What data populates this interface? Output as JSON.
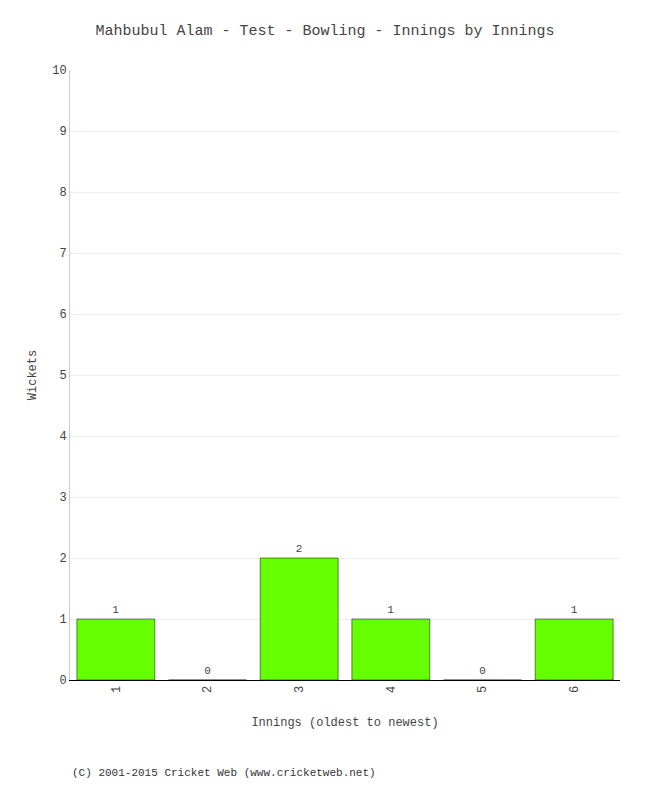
{
  "chart_data": {
    "type": "bar",
    "title": "Mahbubul Alam - Test - Bowling - Innings by Innings",
    "xlabel": "Innings (oldest to newest)",
    "ylabel": "Wickets",
    "categories": [
      1,
      2,
      3,
      4,
      5,
      6
    ],
    "values": [
      1,
      0,
      2,
      1,
      0,
      1
    ],
    "color": "#66ff00",
    "ylim": [
      0,
      10
    ],
    "yticks": [
      0,
      1,
      2,
      3,
      4,
      5,
      6,
      7,
      8,
      9,
      10
    ],
    "grid": true,
    "data_labels": true,
    "annotations": [
      "(C) 2001-2015 Cricket Web (www.cricketweb.net)"
    ]
  }
}
